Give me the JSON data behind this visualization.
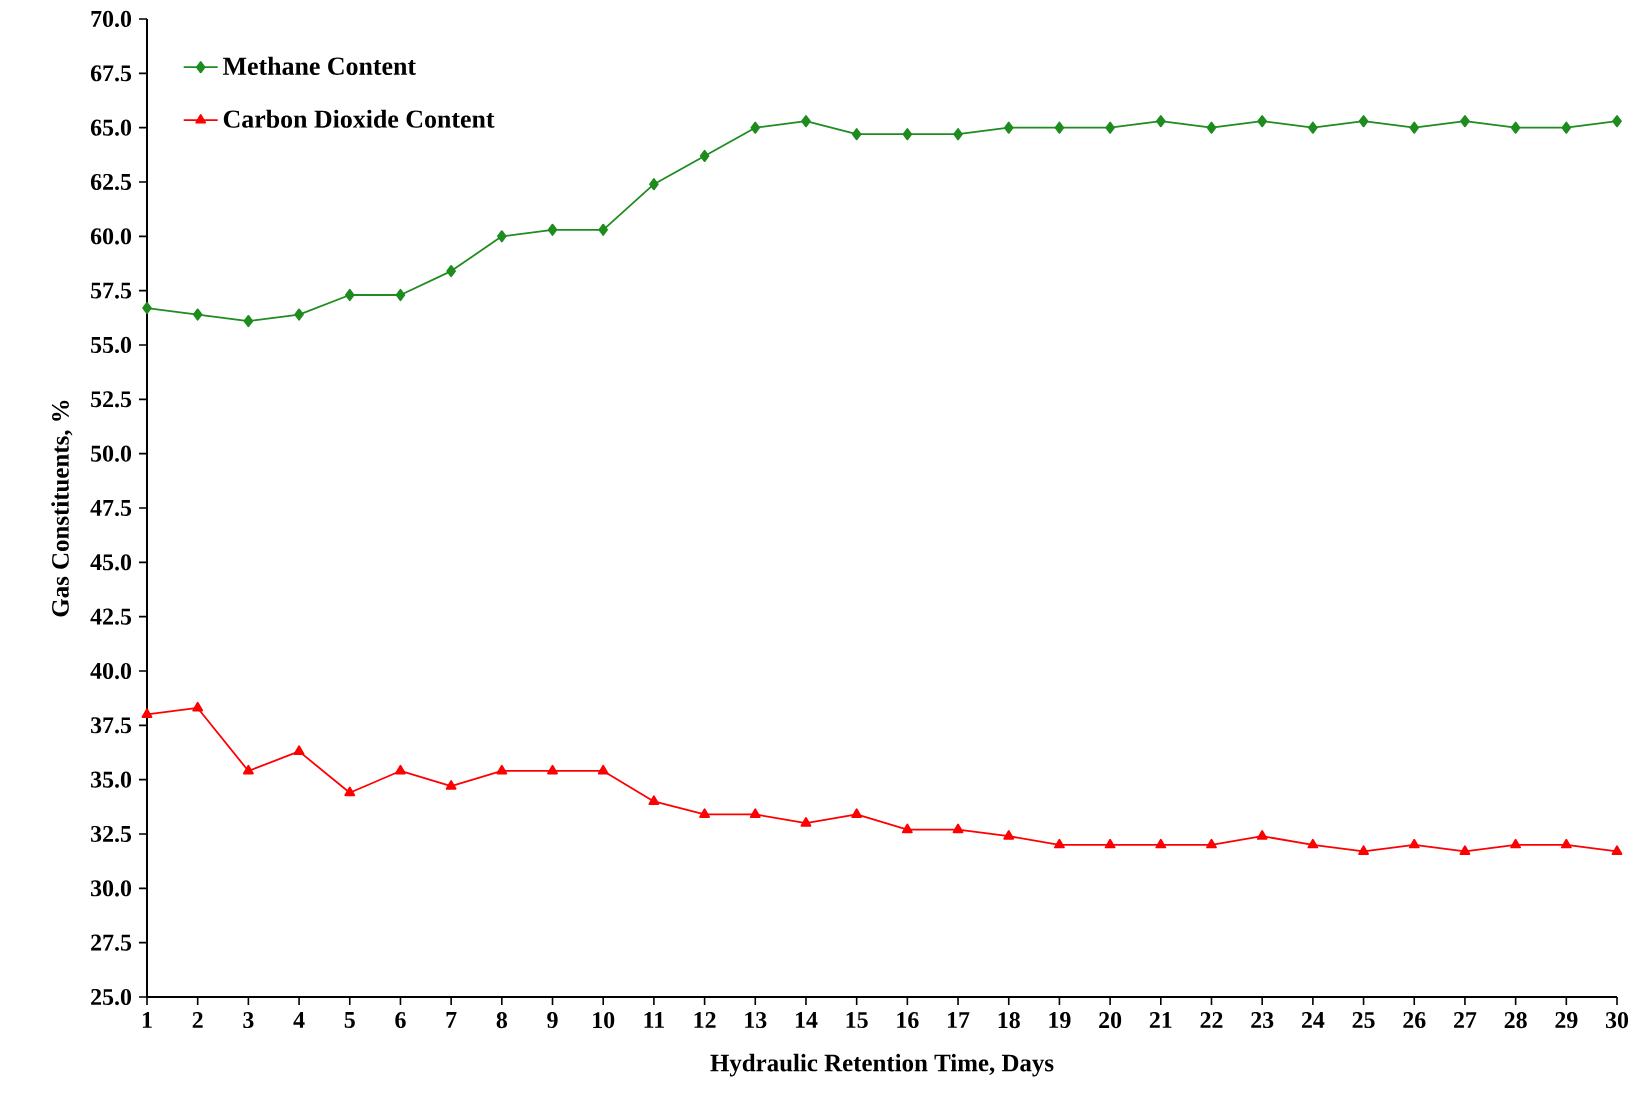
{
  "chart_data": {
    "type": "line",
    "xlabel": "Hydraulic Retention Time, Days",
    "ylabel": "Gas Constituents, %",
    "x": [
      1,
      2,
      3,
      4,
      5,
      6,
      7,
      8,
      9,
      10,
      11,
      12,
      13,
      14,
      15,
      16,
      17,
      18,
      19,
      20,
      21,
      22,
      23,
      24,
      25,
      26,
      27,
      28,
      29,
      30
    ],
    "series": [
      {
        "name": "Methane Content",
        "color": "#1e8c1e",
        "marker": "diamond",
        "values": [
          56.7,
          56.4,
          56.1,
          56.4,
          57.3,
          57.3,
          58.4,
          60.0,
          60.3,
          60.3,
          62.4,
          63.7,
          65.0,
          65.3,
          64.7,
          64.7,
          64.7,
          65.0,
          65.0,
          65.0,
          65.3,
          65.0,
          65.3,
          65.0,
          65.3,
          65.0,
          65.3,
          65.0,
          65.0,
          65.3
        ]
      },
      {
        "name": "Carbon Dioxide Content",
        "color": "#ff0000",
        "marker": "triangle",
        "values": [
          38.0,
          38.3,
          35.4,
          36.3,
          34.4,
          35.4,
          34.7,
          35.4,
          35.4,
          35.4,
          34.0,
          33.4,
          33.4,
          33.0,
          33.4,
          32.7,
          32.7,
          32.4,
          32.0,
          32.0,
          32.0,
          32.0,
          32.4,
          32.0,
          31.7,
          32.0,
          31.7,
          32.0,
          32.0,
          31.7
        ]
      }
    ],
    "xlim": [
      1,
      30
    ],
    "xticks": [
      1,
      2,
      3,
      4,
      5,
      6,
      7,
      8,
      9,
      10,
      11,
      12,
      13,
      14,
      15,
      16,
      17,
      18,
      19,
      20,
      21,
      22,
      23,
      24,
      25,
      26,
      27,
      28,
      29,
      30
    ],
    "ylim": [
      25,
      70
    ],
    "yticks": [
      {
        "value": 25,
        "label": "25.0"
      },
      {
        "value": 27.5,
        "label": "27.5"
      },
      {
        "value": 30,
        "label": "30.0"
      },
      {
        "value": 32.5,
        "label": "32.5"
      },
      {
        "value": 35,
        "label": "35.0"
      },
      {
        "value": 37.5,
        "label": "37.5"
      },
      {
        "value": 40,
        "label": "40.0"
      },
      {
        "value": 42.5,
        "label": "42.5"
      },
      {
        "value": 45,
        "label": "45.0"
      },
      {
        "value": 47.5,
        "label": "47.5"
      },
      {
        "value": 50,
        "label": "50.0"
      },
      {
        "value": 52.5,
        "label": "52.5"
      },
      {
        "value": 55,
        "label": "55.0"
      },
      {
        "value": 57.5,
        "label": "57.5"
      },
      {
        "value": 60,
        "label": "60.0"
      },
      {
        "value": 62.5,
        "label": "62.5"
      },
      {
        "value": 65,
        "label": "65.0"
      },
      {
        "value": 67.5,
        "label": "67.5"
      },
      {
        "value": 70,
        "label": "70.0"
      }
    ],
    "grid": false,
    "legend": "top left",
    "line_style": "solid"
  }
}
